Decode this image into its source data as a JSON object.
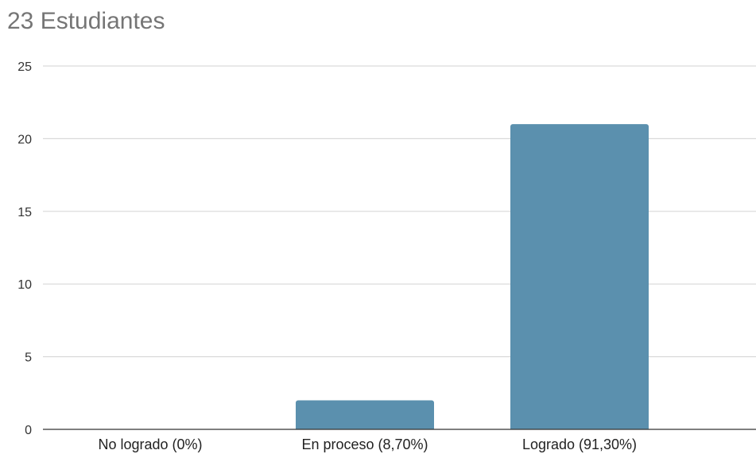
{
  "chart_data": {
    "type": "bar",
    "title": "23 Estudiantes",
    "categories": [
      "No logrado (0%)",
      "En proceso (8,70%)",
      "Logrado (91,30%)"
    ],
    "values": [
      0,
      2,
      21
    ],
    "ylim": [
      0,
      25
    ],
    "yticks": [
      0,
      5,
      10,
      15,
      20,
      25
    ],
    "xlabel": "",
    "ylabel": "",
    "grid": true,
    "bar_color": "#5b90ae",
    "grid_color": "#d9d9d9",
    "axis_color": "#333333"
  }
}
